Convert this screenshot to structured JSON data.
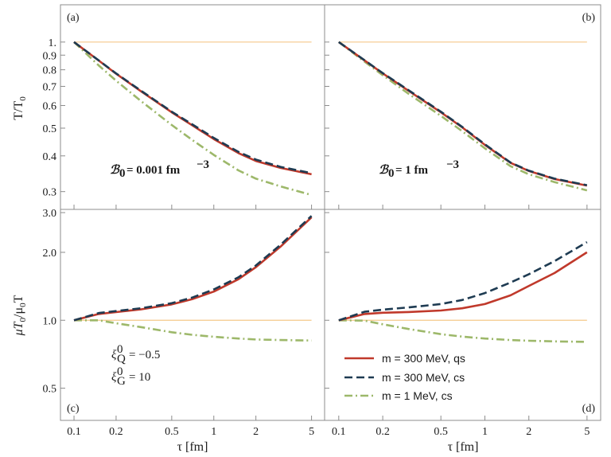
{
  "chart_data": {
    "type": "line",
    "xlabel": "τ [fm]",
    "x_ticks": [
      0.1,
      0.2,
      0.5,
      1,
      2,
      5
    ],
    "x_tick_labels": [
      "0.1",
      "0.2",
      "0.5",
      "1",
      "2",
      "5"
    ],
    "xlim": [
      0.08,
      6.2
    ],
    "x_scale": "log",
    "rows": [
      {
        "ylabel_main": "T/T",
        "ylabel_sub": "0",
        "ylim": [
          0.26,
          1.35
        ],
        "y_scale": "log",
        "y_ticks": [
          0.3,
          0.4,
          0.5,
          0.6,
          0.7,
          0.8,
          0.9,
          1.0
        ],
        "y_tick_labels": [
          "0.3",
          "0.4",
          "0.5",
          "0.6",
          "0.7",
          "0.8",
          "0.9",
          "1."
        ],
        "reference_line": 1.0
      },
      {
        "ylabel_main": "μT",
        "ylabel_mid": "/μ",
        "ylabel_sub1": "0",
        "ylabel_sub2": "0",
        "ylabel_tail": "T",
        "ylim": [
          0.36,
          3.1
        ],
        "y_scale": "log",
        "y_ticks": [
          0.5,
          1.0,
          2.0,
          3.0
        ],
        "y_tick_labels": [
          "0.5",
          "1.0",
          "2.0",
          "3.0"
        ],
        "reference_line": 1.0
      }
    ],
    "panels": [
      {
        "id": "a",
        "row": 0,
        "col": 0,
        "tag": "(a)",
        "tag_pos": "top-left",
        "annotation": "= 0.001 fm",
        "series": [
          {
            "key": "qs",
            "x": [
              0.1,
              0.15,
              0.2,
              0.3,
              0.5,
              0.7,
              1,
              1.5,
              2,
              3,
              5
            ],
            "y": [
              1.0,
              0.862,
              0.775,
              0.674,
              0.568,
              0.512,
              0.458,
              0.409,
              0.384,
              0.363,
              0.345
            ]
          },
          {
            "key": "cs",
            "x": [
              0.1,
              0.15,
              0.2,
              0.3,
              0.5,
              0.7,
              1,
              1.5,
              2,
              3,
              5
            ],
            "y": [
              1.0,
              0.863,
              0.777,
              0.677,
              0.571,
              0.516,
              0.462,
              0.413,
              0.388,
              0.366,
              0.348
            ]
          },
          {
            "key": "light",
            "x": [
              0.1,
              0.15,
              0.2,
              0.3,
              0.5,
              0.7,
              1,
              1.5,
              2,
              3,
              5
            ],
            "y": [
              1.0,
              0.829,
              0.733,
              0.623,
              0.513,
              0.455,
              0.403,
              0.356,
              0.333,
              0.313,
              0.292
            ]
          }
        ]
      },
      {
        "id": "b",
        "row": 0,
        "col": 1,
        "tag": "(b)",
        "tag_pos": "top-right",
        "annotation": "= 1 fm",
        "series": [
          {
            "key": "qs",
            "x": [
              0.1,
              0.15,
              0.2,
              0.3,
              0.5,
              0.7,
              1,
              1.5,
              2,
              3,
              5
            ],
            "y": [
              1.0,
              0.863,
              0.777,
              0.676,
              0.568,
              0.503,
              0.437,
              0.378,
              0.354,
              0.332,
              0.315
            ]
          },
          {
            "key": "cs",
            "x": [
              0.1,
              0.15,
              0.2,
              0.3,
              0.5,
              0.7,
              1,
              1.5,
              2,
              3,
              5
            ],
            "y": [
              1.0,
              0.864,
              0.779,
              0.679,
              0.571,
              0.505,
              0.439,
              0.379,
              0.355,
              0.333,
              0.316
            ]
          },
          {
            "key": "light",
            "x": [
              0.1,
              0.15,
              0.2,
              0.3,
              0.5,
              0.7,
              1,
              1.5,
              2,
              3,
              5
            ],
            "y": [
              1.0,
              0.855,
              0.766,
              0.66,
              0.552,
              0.488,
              0.425,
              0.368,
              0.345,
              0.324,
              0.303
            ]
          }
        ]
      },
      {
        "id": "c",
        "row": 1,
        "col": 0,
        "tag": "(c)",
        "tag_pos": "bottom-left",
        "xi_q_label": "Q",
        "xi_g_label": "G",
        "xi_q_value": "= −0.5",
        "xi_g_value": "= 10",
        "series": [
          {
            "key": "qs",
            "x": [
              0.1,
              0.15,
              0.2,
              0.3,
              0.5,
              0.7,
              1,
              1.5,
              2,
              3,
              5
            ],
            "y": [
              1.0,
              1.066,
              1.087,
              1.117,
              1.176,
              1.24,
              1.34,
              1.52,
              1.72,
              2.12,
              2.86
            ]
          },
          {
            "key": "cs",
            "x": [
              0.1,
              0.15,
              0.2,
              0.3,
              0.5,
              0.7,
              1,
              1.5,
              2,
              3,
              5
            ],
            "y": [
              1.0,
              1.076,
              1.098,
              1.13,
              1.19,
              1.26,
              1.37,
              1.55,
              1.75,
              2.16,
              2.9
            ]
          },
          {
            "key": "light",
            "x": [
              0.1,
              0.15,
              0.2,
              0.3,
              0.5,
              0.7,
              1,
              1.5,
              2,
              3,
              5
            ],
            "y": [
              1.0,
              1.0,
              0.97,
              0.933,
              0.885,
              0.862,
              0.845,
              0.83,
              0.822,
              0.817,
              0.813
            ]
          }
        ]
      },
      {
        "id": "d",
        "row": 1,
        "col": 1,
        "tag": "(d)",
        "tag_pos": "bottom-right",
        "series": [
          {
            "key": "qs",
            "x": [
              0.1,
              0.15,
              0.2,
              0.3,
              0.5,
              0.7,
              1,
              1.5,
              2,
              3,
              5
            ],
            "y": [
              1.0,
              1.066,
              1.08,
              1.088,
              1.105,
              1.13,
              1.18,
              1.29,
              1.42,
              1.62,
              2.0
            ]
          },
          {
            "key": "cs",
            "x": [
              0.1,
              0.15,
              0.2,
              0.3,
              0.5,
              0.7,
              1,
              1.5,
              2,
              3,
              5
            ],
            "y": [
              1.0,
              1.09,
              1.115,
              1.14,
              1.18,
              1.23,
              1.32,
              1.47,
              1.6,
              1.83,
              2.22
            ]
          },
          {
            "key": "light",
            "x": [
              0.1,
              0.15,
              0.2,
              0.3,
              0.5,
              0.7,
              1,
              1.5,
              2,
              3,
              5
            ],
            "y": [
              1.0,
              0.996,
              0.96,
              0.915,
              0.868,
              0.846,
              0.83,
              0.817,
              0.811,
              0.806,
              0.802
            ]
          }
        ]
      }
    ],
    "legend": {
      "placement": "bottom-left of panel (d)",
      "entries": [
        {
          "key": "qs",
          "label": "m = 300 MeV, qs"
        },
        {
          "key": "cs",
          "label": "m = 300 MeV, cs"
        },
        {
          "key": "light",
          "label": "m = 1 MeV, cs"
        }
      ]
    },
    "styles": {
      "qs": {
        "color": "#c0392b",
        "dash": "solid"
      },
      "cs": {
        "color": "#1e3b52",
        "dash": "dashed"
      },
      "light": {
        "color": "#9db86a",
        "dash": "dashdot"
      },
      "reference": {
        "color": "#f5c98a"
      }
    }
  }
}
